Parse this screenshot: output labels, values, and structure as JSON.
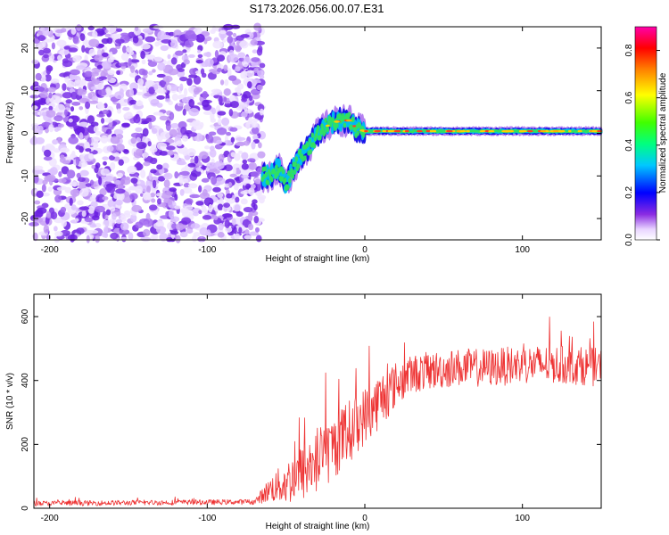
{
  "title": "S173.2026.056.00.07.E31",
  "chart_data": [
    {
      "type": "heatmap",
      "title": "S173.2026.056.00.07.E31",
      "xlabel": "Height of straight line (km)",
      "ylabel": "Frequency (Hz)",
      "xlim": [
        -210,
        150
      ],
      "ylim": [
        -25,
        25
      ],
      "xticks": [
        -200,
        -100,
        0,
        100
      ],
      "yticks": [
        -20,
        -10,
        0,
        10,
        20
      ],
      "noise_region_x": [
        -210,
        -65
      ],
      "signal_track": {
        "x": [
          -65,
          -60,
          -55,
          -50,
          -45,
          -40,
          -35,
          -30,
          -25,
          -20,
          -15,
          -10,
          -5,
          0,
          10,
          50,
          100,
          150
        ],
        "freq": [
          -10,
          -10,
          -8,
          -12,
          -8,
          -5,
          -3,
          0,
          1.5,
          2.5,
          3,
          3,
          1,
          0.5,
          0.5,
          0.5,
          0.5,
          0.5
        ]
      },
      "colorbar": {
        "label": "Normalized spectral amplitude",
        "range": [
          0.0,
          0.9
        ],
        "ticks": [
          "0.0",
          "0.2",
          "0.4",
          "0.6",
          "0.8"
        ]
      }
    },
    {
      "type": "line",
      "xlabel": "Height of straight line (km)",
      "ylabel": "SNR (10 * v/v)",
      "xlim": [
        -210,
        150
      ],
      "ylim": [
        0,
        670
      ],
      "xticks": [
        -200,
        -100,
        0,
        100
      ],
      "yticks": [
        0,
        200,
        400,
        600
      ],
      "series": [
        {
          "name": "SNR",
          "color": "#ee3333",
          "x": [
            -210,
            -70,
            -60,
            -50,
            -40,
            -30,
            -20,
            -10,
            0,
            10,
            20,
            30,
            40,
            60,
            80,
            100,
            120,
            140,
            150
          ],
          "mean": [
            15,
            20,
            60,
            80,
            110,
            150,
            190,
            240,
            290,
            340,
            390,
            420,
            430,
            440,
            440,
            450,
            450,
            445,
            440
          ],
          "spread": [
            8,
            8,
            40,
            70,
            90,
            110,
            100,
            100,
            90,
            90,
            70,
            60,
            60,
            60,
            60,
            60,
            60,
            60,
            60
          ]
        }
      ]
    }
  ]
}
